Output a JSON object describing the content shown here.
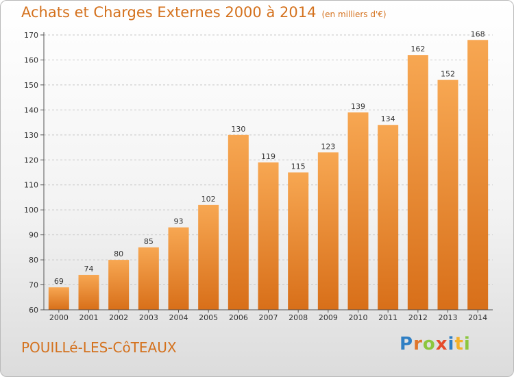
{
  "header": {
    "title": "Achats et Charges Externes 2000 à 2014",
    "subtitle": "(en milliers d'€)"
  },
  "footer": {
    "commune": "POUILLé-LES-CôTEAUX",
    "logo": {
      "letters": [
        "P",
        "r",
        "o",
        "x",
        "i",
        "t",
        "i"
      ],
      "colors": [
        "#2f7fc4",
        "#e0752a",
        "#8cc63f",
        "#e64b2b",
        "#2f7fc4",
        "#f4b12a",
        "#8cc63f"
      ]
    }
  },
  "colors": {
    "bar_light": "#f7a752",
    "bar_dark": "#d86f19",
    "grid": "#c8c8c8",
    "title": "#d4711d"
  },
  "chart_data": {
    "type": "bar",
    "categories": [
      "2000",
      "2001",
      "2002",
      "2003",
      "2004",
      "2005",
      "2006",
      "2007",
      "2008",
      "2009",
      "2010",
      "2011",
      "2012",
      "2013",
      "2014"
    ],
    "values": [
      69,
      74,
      80,
      85,
      93,
      102,
      130,
      119,
      115,
      123,
      139,
      134,
      162,
      152,
      168
    ],
    "ylim": [
      60,
      170
    ],
    "yticks": [
      60,
      70,
      80,
      90,
      100,
      110,
      120,
      130,
      140,
      150,
      160,
      170
    ],
    "grid": true,
    "legend": false
  }
}
